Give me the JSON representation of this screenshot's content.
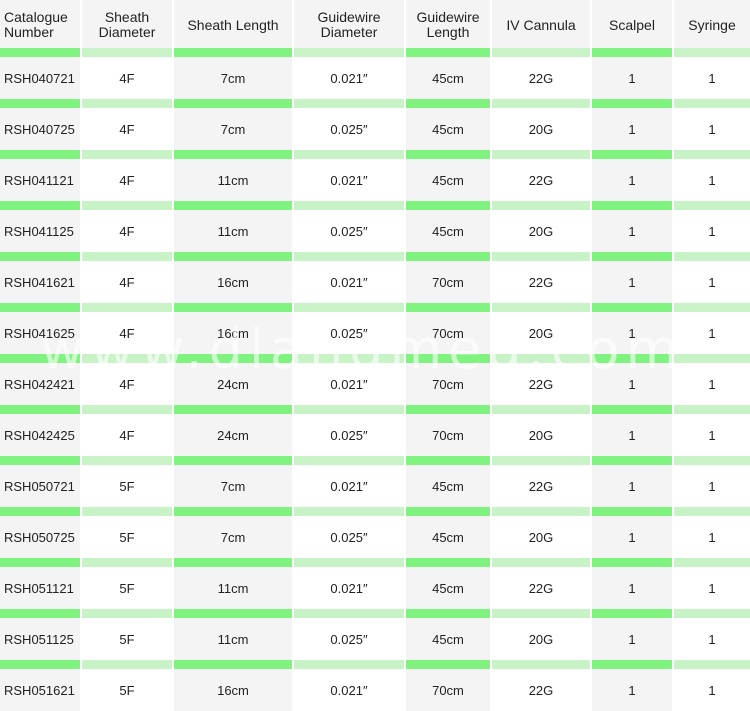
{
  "table": {
    "headers": [
      "Catalogue Number",
      "Sheath Diameter",
      "Sheath Length",
      "Guidewire Diameter",
      "Guidewire Length",
      "IV Cannula",
      "Scalpel",
      "Syringe"
    ],
    "rows": [
      [
        "RSH040721",
        "4F",
        "7cm",
        "0.021″",
        "45cm",
        "22G",
        "1",
        "1"
      ],
      [
        "RSH040725",
        "4F",
        "7cm",
        "0.025″",
        "45cm",
        "20G",
        "1",
        "1"
      ],
      [
        "RSH041121",
        "4F",
        "11cm",
        "0.021″",
        "45cm",
        "22G",
        "1",
        "1"
      ],
      [
        "RSH041125",
        "4F",
        "11cm",
        "0.025″",
        "45cm",
        "20G",
        "1",
        "1"
      ],
      [
        "RSH041621",
        "4F",
        "16cm",
        "0.021″",
        "70cm",
        "22G",
        "1",
        "1"
      ],
      [
        "RSH041625",
        "4F",
        "16cm",
        "0.025″",
        "70cm",
        "20G",
        "1",
        "1"
      ],
      [
        "RSH042421",
        "4F",
        "24cm",
        "0.021″",
        "70cm",
        "22G",
        "1",
        "1"
      ],
      [
        "RSH042425",
        "4F",
        "24cm",
        "0.025″",
        "70cm",
        "20G",
        "1",
        "1"
      ],
      [
        "RSH050721",
        "5F",
        "7cm",
        "0.021″",
        "45cm",
        "22G",
        "1",
        "1"
      ],
      [
        "RSH050725",
        "5F",
        "7cm",
        "0.025″",
        "45cm",
        "20G",
        "1",
        "1"
      ],
      [
        "RSH051121",
        "5F",
        "11cm",
        "0.021″",
        "45cm",
        "22G",
        "1",
        "1"
      ],
      [
        "RSH051125",
        "5F",
        "11cm",
        "0.025″",
        "45cm",
        "20G",
        "1",
        "1"
      ],
      [
        "RSH051621",
        "5F",
        "16cm",
        "0.021″",
        "70cm",
        "22G",
        "1",
        "1"
      ]
    ]
  },
  "watermark": "www.dlandmed.com",
  "colors": {
    "band_bright": "#7ff27f",
    "band_pale": "#c7f3c7",
    "cell_gray": "#f4f4f4",
    "cell_white": "#ffffff"
  }
}
